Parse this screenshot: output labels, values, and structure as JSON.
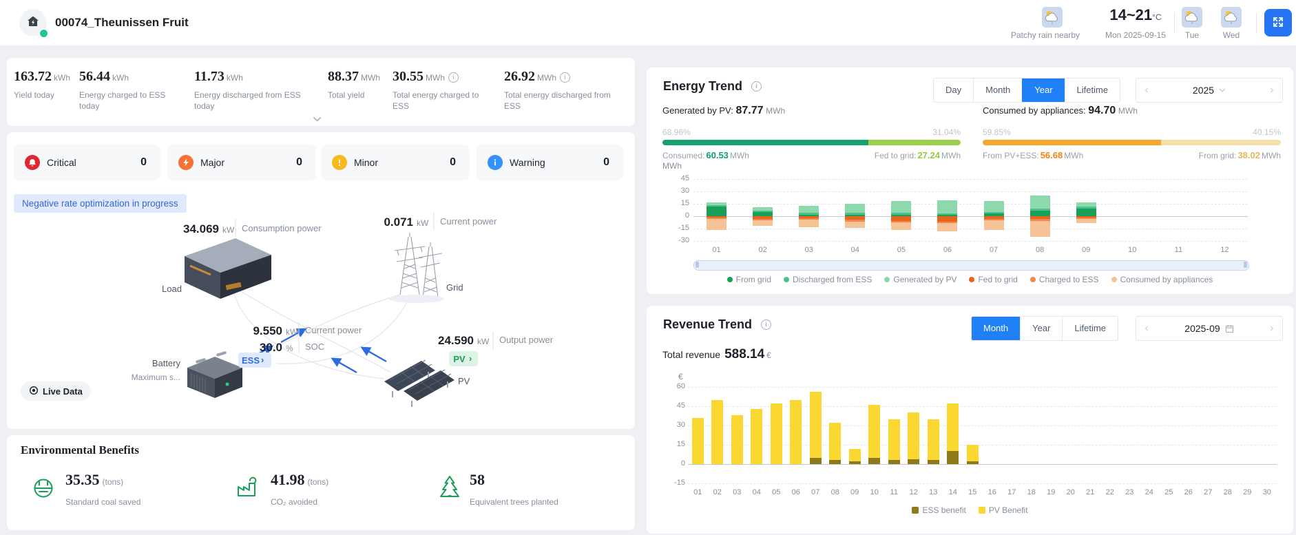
{
  "header": {
    "title": "00074_Theunissen Fruit",
    "weather_today": {
      "condition": "Patchy rain nearby",
      "temp_range": "14~21",
      "temp_unit": "°C",
      "date": "Mon 2025-09-15"
    },
    "forecast": [
      {
        "day": "Tue"
      },
      {
        "day": "Wed"
      }
    ]
  },
  "stats": [
    {
      "value": "163.72",
      "unit": "kWh",
      "label": "Yield today",
      "info": false
    },
    {
      "value": "56.44",
      "unit": "kWh",
      "label": "Energy charged to ESS today",
      "info": false
    },
    {
      "value": "11.73",
      "unit": "kWh",
      "label": "Energy discharged from ESS today",
      "info": false
    },
    {
      "value": "88.37",
      "unit": "MWh",
      "label": "Total yield",
      "info": false
    },
    {
      "value": "30.55",
      "unit": "MWh",
      "label": "Total energy charged to ESS",
      "info": true
    },
    {
      "value": "26.92",
      "unit": "MWh",
      "label": "Total energy discharged from ESS",
      "info": true
    }
  ],
  "alarms": [
    {
      "label": "Critical",
      "count": "0",
      "color": "#e0282e",
      "icon": "bell"
    },
    {
      "label": "Major",
      "count": "0",
      "color": "#f77234",
      "icon": "bolt"
    },
    {
      "label": "Minor",
      "count": "0",
      "color": "#f7ba1e",
      "icon": "exclamation"
    },
    {
      "label": "Warning",
      "count": "0",
      "color": "#3491fa",
      "icon": "info"
    }
  ],
  "monitor": {
    "status_badge": "Negative rate optimization in progress",
    "live_data": "Live Data",
    "load": {
      "value": "34.069",
      "unit": "kW",
      "metric": "Consumption power",
      "name": "Load"
    },
    "grid": {
      "value": "0.071",
      "unit": "kW",
      "metric": "Current power",
      "name": "Grid"
    },
    "battery": {
      "value": "9.550",
      "unit": "kW",
      "metric": "Current power",
      "soc_value": "30.0",
      "soc_unit": "%",
      "soc_metric": "SOC",
      "name": "Battery",
      "sub": "Maximum s...",
      "link": "ESS"
    },
    "pv": {
      "value": "24.590",
      "unit": "kW",
      "metric": "Output power",
      "name": "PV",
      "link": "PV"
    }
  },
  "environment": {
    "title": "Environmental Benefits",
    "items": [
      {
        "value": "35.35",
        "unit": "(tons)",
        "label": "Standard coal saved",
        "icon": "coal"
      },
      {
        "value": "41.98",
        "unit": "(tons)",
        "label": "CO₂ avoided",
        "icon": "factory"
      },
      {
        "value": "58",
        "unit": "",
        "label": "Equivalent trees planted",
        "icon": "tree"
      }
    ]
  },
  "energy_trend": {
    "title": "Energy Trend",
    "tabs": [
      "Day",
      "Month",
      "Year",
      "Lifetime"
    ],
    "active_tab": "Year",
    "period": "2025",
    "left_summary": {
      "label": "Generated by PV:",
      "value": "87.77",
      "unit": "MWh",
      "start_pct": "68.96%",
      "end_pct": "31.04%",
      "seg1_color": "#15a26f",
      "seg2_color": "#9ad14b",
      "seg1_label": "Consumed:",
      "seg1_value": "60.53",
      "seg1_unit": "MWh",
      "seg1_value_color": "#12a06d",
      "seg2_label": "Fed to grid:",
      "seg2_value": "27.24",
      "seg2_unit": "MWh",
      "seg2_value_color": "#8fcf3e"
    },
    "right_summary": {
      "label": "Consumed by appliances:",
      "value": "94.70",
      "unit": "MWh",
      "start_pct": "59.85%",
      "end_pct": "40.15%",
      "seg1_color": "#f5a62c",
      "seg2_color": "#f6e0aa",
      "seg1_label": "From PV+ESS:",
      "seg1_value": "56.68",
      "seg1_unit": "MWh",
      "seg1_value_color": "#f5820c",
      "seg2_label": "From grid:",
      "seg2_value": "38.02",
      "seg2_unit": "MWh",
      "seg2_value_color": "#e3b95f"
    },
    "chart_data": {
      "type": "bar",
      "stacked": true,
      "ylabel": "MWh",
      "yticks": [
        45,
        30,
        15,
        0,
        -15,
        -30
      ],
      "ylim": [
        -30,
        45
      ],
      "grid": true,
      "legend_position": "bottom",
      "categories": [
        "01",
        "02",
        "03",
        "04",
        "05",
        "06",
        "07",
        "08",
        "09",
        "10",
        "11",
        "12"
      ],
      "series": [
        {
          "name": "From grid",
          "color": "#18a058",
          "values": [
            12,
            5,
            2,
            2,
            2,
            2,
            3,
            7,
            9,
            0,
            0,
            0
          ]
        },
        {
          "name": "Discharged from ESS",
          "color": "#4fc08d",
          "values": [
            1.5,
            2,
            2.5,
            2,
            2,
            1.5,
            2,
            2.5,
            2.5,
            0,
            0,
            0
          ]
        },
        {
          "name": "Generated by PV",
          "color": "#8ed9ab",
          "values": [
            3.5,
            4,
            8,
            11,
            14,
            15.5,
            13,
            15.5,
            5.5,
            0,
            0,
            0
          ]
        },
        {
          "name": "Fed to grid",
          "color": "#e8641b",
          "values": [
            -2,
            -3.5,
            -2.5,
            -4.5,
            -5.5,
            -6.5,
            -3,
            -3,
            -1.5,
            0,
            0,
            0
          ]
        },
        {
          "name": "Charged to ESS",
          "color": "#f0884f",
          "values": [
            -1.5,
            -1.5,
            -2,
            -2,
            -2,
            -2,
            -2,
            -2.5,
            -1.5,
            0,
            0,
            0
          ]
        },
        {
          "name": "Consumed by appliances",
          "color": "#f6c396",
          "values": [
            -13.5,
            -6.5,
            -8.5,
            -7.5,
            -9.5,
            -9.5,
            -12,
            -19.5,
            -5,
            0,
            0,
            0
          ]
        }
      ]
    }
  },
  "revenue_trend": {
    "title": "Revenue Trend",
    "tabs": [
      "Month",
      "Year",
      "Lifetime"
    ],
    "active_tab": "Month",
    "period": "2025-09",
    "total_label": "Total revenue",
    "total_value": "588.14",
    "currency": "€",
    "chart_data": {
      "type": "bar",
      "stacked": true,
      "ylabel": "€",
      "yticks": [
        60,
        45,
        30,
        15,
        0,
        -15
      ],
      "ylim": [
        -15,
        60
      ],
      "grid": true,
      "legend_position": "bottom",
      "categories": [
        "01",
        "02",
        "03",
        "04",
        "05",
        "06",
        "07",
        "08",
        "09",
        "10",
        "11",
        "12",
        "13",
        "14",
        "15",
        "16",
        "17",
        "18",
        "19",
        "20",
        "21",
        "22",
        "23",
        "24",
        "25",
        "26",
        "27",
        "28",
        "29",
        "30"
      ],
      "series": [
        {
          "name": "ESS benefit",
          "color": "#8f7a1a",
          "values": [
            0,
            0,
            0,
            0,
            0,
            0,
            5,
            3,
            2,
            5,
            3,
            4,
            3,
            10,
            2,
            0,
            0,
            0,
            0,
            0,
            0,
            0,
            0,
            0,
            0,
            0,
            0,
            0,
            0,
            0
          ]
        },
        {
          "name": "PV Benefit",
          "color": "#fad831",
          "values": [
            36,
            50,
            38,
            43,
            47,
            50,
            51,
            29,
            10,
            41,
            32,
            36,
            32,
            37,
            13,
            0,
            0,
            0,
            0,
            0,
            0,
            0,
            0,
            0,
            0,
            0,
            0,
            0,
            0,
            0
          ]
        }
      ]
    }
  }
}
